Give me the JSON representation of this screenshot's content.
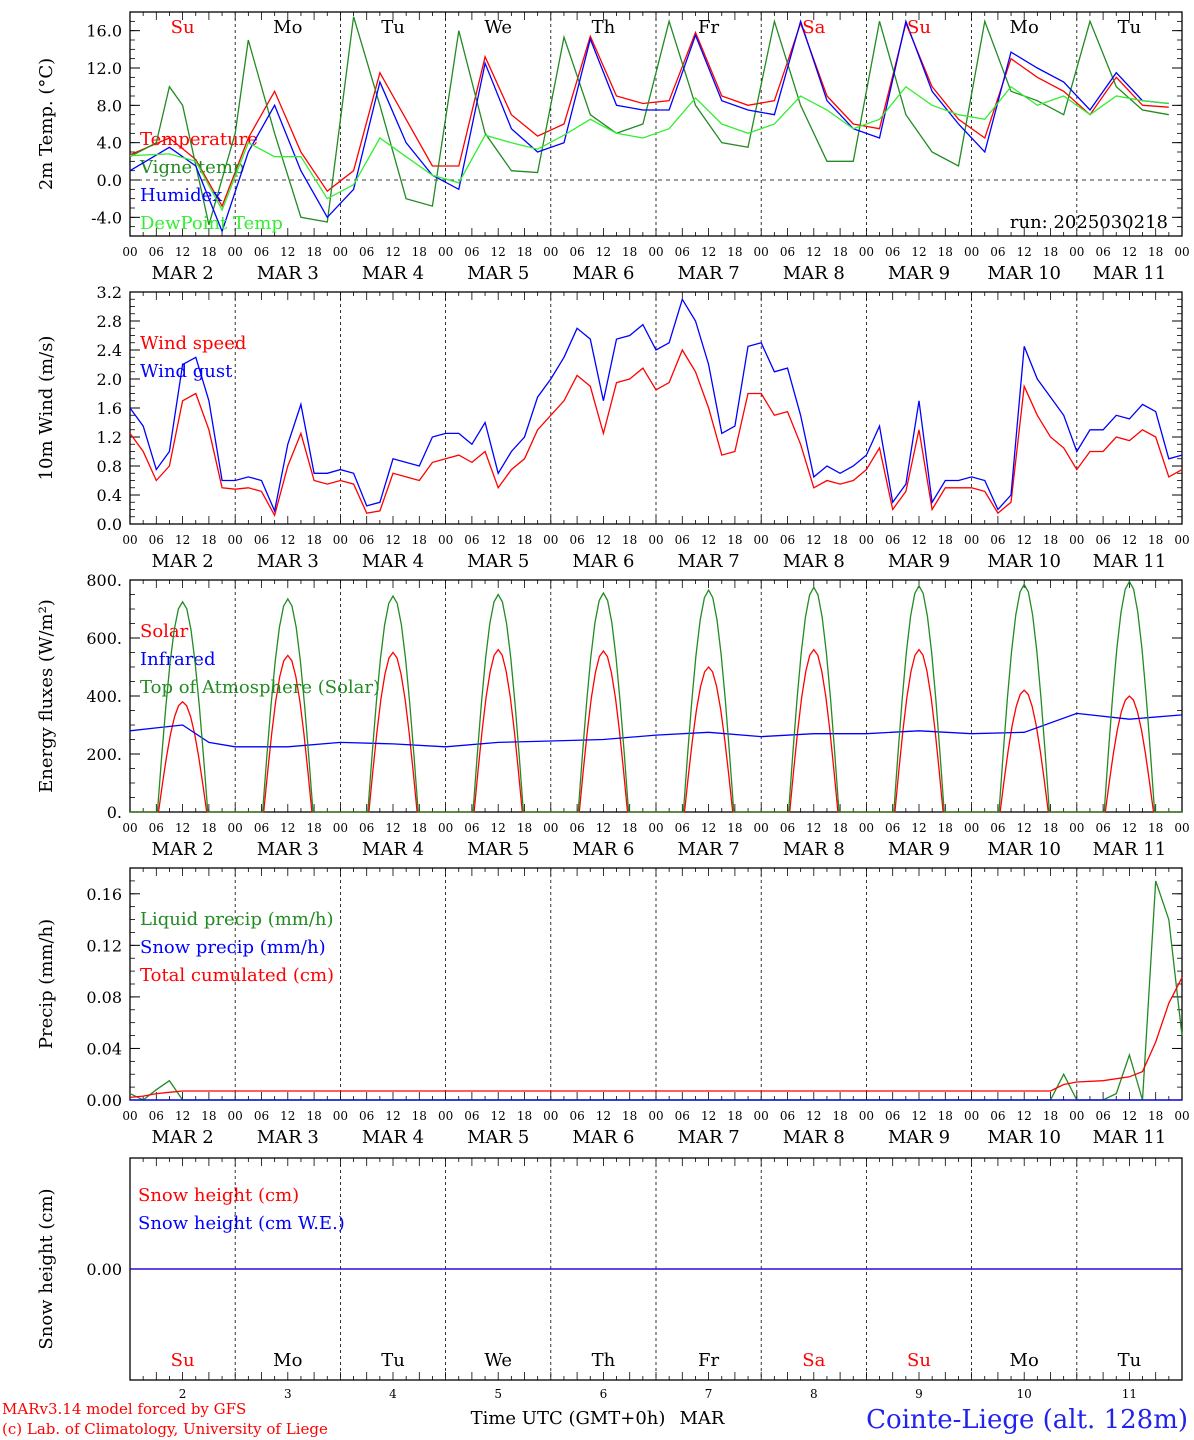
{
  "run_label": "run: 2025030218",
  "days": [
    "Su",
    "Mo",
    "Tu",
    "We",
    "Th",
    "Fr",
    "Sa",
    "Su",
    "Mo",
    "Tu"
  ],
  "day_colors": [
    "#ff0000",
    "#000000",
    "#000000",
    "#000000",
    "#000000",
    "#000000",
    "#ff0000",
    "#ff0000",
    "#000000",
    "#000000"
  ],
  "dates": [
    "MAR 2",
    "MAR 3",
    "MAR 4",
    "MAR 5",
    "MAR 6",
    "MAR 7",
    "MAR 8",
    "MAR 9",
    "MAR 10",
    "MAR 11"
  ],
  "date_numbers": [
    "2",
    "3",
    "4",
    "5",
    "6",
    "7",
    "8",
    "9",
    "10",
    "11"
  ],
  "hour_labels": [
    "00",
    "06",
    "12",
    "18"
  ],
  "hour_end_label": "00",
  "footer": {
    "model": "MARv3.14 model forced by GFS",
    "lab": "(c) Lab. of Climatology, University of Liege",
    "xlabel": "Time UTC (GMT+0h)",
    "month": "MAR",
    "station": "Cointe-Liege (alt. 128m)"
  },
  "colors": {
    "red": "#ff0000",
    "green": "#228b22",
    "blue": "#0000ff",
    "lightgreen": "#33ee33"
  },
  "chart_data": [
    {
      "type": "line",
      "ylabel": "2m Temp. (°C)",
      "ylim": [
        -6.0,
        18.0
      ],
      "yticks": [
        -4.0,
        0.0,
        4.0,
        8.0,
        12.0,
        16.0
      ],
      "ytick_labels": [
        "-4.0",
        "0.0",
        "4.0",
        "8.0",
        "12.0",
        "16.0"
      ],
      "zero_line": true,
      "series": [
        {
          "name": "Temperature",
          "color": "#ff0000",
          "x": [
            0,
            9,
            15,
            21,
            27,
            33,
            39,
            45,
            51,
            57,
            63,
            69,
            75,
            81,
            87,
            93,
            99,
            105,
            111,
            117,
            123,
            129,
            135,
            141,
            147,
            153,
            159,
            165,
            171,
            177,
            183,
            189,
            195,
            201,
            207,
            213,
            219,
            225,
            231,
            237
          ],
          "y": [
            2.7,
            4.5,
            2.2,
            -2.8,
            4.5,
            9.5,
            3.0,
            -1.2,
            1.0,
            11.5,
            6.5,
            1.5,
            1.5,
            13.2,
            7.0,
            4.7,
            6.0,
            15.4,
            9.0,
            8.2,
            8.5,
            15.8,
            9.0,
            8.0,
            8.5,
            16.8,
            9.0,
            6.0,
            5.5,
            16.8,
            10.0,
            6.5,
            4.5,
            13.0,
            11.0,
            9.5,
            7.0,
            11.0,
            8.0,
            7.8
          ]
        },
        {
          "name": "Vigne temp",
          "color": "#228b22",
          "x": [
            0,
            6,
            9,
            12,
            18,
            24,
            27,
            33,
            39,
            45,
            51,
            57,
            63,
            69,
            75,
            81,
            87,
            93,
            99,
            105,
            111,
            117,
            123,
            129,
            135,
            141,
            147,
            153,
            159,
            165,
            171,
            177,
            183,
            189,
            195,
            201,
            207,
            213,
            219,
            225,
            231,
            237
          ],
          "y": [
            2.5,
            4.0,
            10.0,
            8.0,
            -4.8,
            5.0,
            15.0,
            5.0,
            -4.0,
            -4.5,
            17.5,
            8.0,
            -2.0,
            -2.8,
            16.0,
            5.0,
            1.0,
            0.8,
            15.3,
            7.0,
            5.0,
            6.0,
            17.0,
            8.0,
            4.0,
            3.5,
            17.0,
            8.0,
            2.0,
            2.0,
            17.0,
            7.0,
            3.0,
            1.5,
            17.0,
            9.5,
            8.5,
            7.0,
            17.0,
            10.0,
            7.5,
            7.0
          ]
        },
        {
          "name": "Humidex",
          "color": "#0000ff",
          "x": [
            0,
            9,
            15,
            21,
            27,
            33,
            39,
            45,
            51,
            57,
            63,
            69,
            75,
            81,
            87,
            93,
            99,
            105,
            111,
            117,
            123,
            129,
            135,
            141,
            147,
            153,
            159,
            165,
            171,
            177,
            183,
            189,
            195,
            201,
            207,
            213,
            219,
            225,
            231,
            237
          ],
          "y": [
            1.0,
            3.5,
            1.5,
            -5.5,
            3.0,
            8.0,
            1.0,
            -4.0,
            -1.0,
            10.5,
            4.0,
            0.5,
            -1.0,
            12.5,
            5.5,
            3.0,
            4.0,
            15.1,
            8.0,
            7.5,
            7.5,
            15.5,
            8.5,
            7.5,
            7.0,
            17.0,
            8.5,
            5.5,
            4.5,
            17.0,
            9.5,
            6.0,
            3.0,
            13.7,
            12.0,
            10.5,
            7.5,
            11.5,
            8.5,
            8.2
          ]
        },
        {
          "name": "DewPoint Temp",
          "color": "#33ee33",
          "x": [
            0,
            9,
            15,
            21,
            27,
            33,
            39,
            45,
            51,
            57,
            63,
            69,
            75,
            81,
            87,
            93,
            99,
            105,
            111,
            117,
            123,
            129,
            135,
            141,
            147,
            153,
            159,
            165,
            171,
            177,
            183,
            189,
            195,
            201,
            207,
            213,
            219,
            225,
            231,
            237
          ],
          "y": [
            2.6,
            2.8,
            2.0,
            -3.2,
            4.0,
            2.5,
            2.5,
            -2.0,
            -0.5,
            4.5,
            2.5,
            0.5,
            -0.3,
            4.8,
            4.0,
            3.3,
            4.8,
            6.5,
            5.0,
            4.5,
            5.5,
            8.8,
            6.0,
            5.0,
            6.0,
            9.0,
            7.5,
            5.5,
            6.5,
            10.0,
            8.0,
            7.0,
            6.5,
            10.0,
            8.0,
            9.0,
            7.0,
            9.0,
            8.5,
            8.2
          ]
        }
      ]
    },
    {
      "type": "line",
      "ylabel": "10m Wind (m/s)",
      "ylim": [
        0.0,
        3.2
      ],
      "yticks": [
        0.0,
        0.4,
        0.8,
        1.2,
        1.6,
        2.0,
        2.4,
        2.8,
        3.2
      ],
      "ytick_labels": [
        "0.0",
        "0.4",
        "0.8",
        "1.2",
        "1.6",
        "2.0",
        "2.4",
        "2.8",
        "3.2"
      ],
      "series": [
        {
          "name": "Wind speed",
          "color": "#ff0000",
          "x": [
            0,
            3,
            6,
            9,
            12,
            15,
            18,
            21,
            24,
            27,
            30,
            33,
            36,
            39,
            42,
            45,
            48,
            51,
            54,
            57,
            60,
            63,
            66,
            69,
            72,
            75,
            78,
            81,
            84,
            87,
            90,
            93,
            96,
            99,
            102,
            105,
            108,
            111,
            114,
            117,
            120,
            123,
            126,
            129,
            132,
            135,
            138,
            141,
            144,
            147,
            150,
            153,
            156,
            159,
            162,
            165,
            168,
            171,
            174,
            177,
            180,
            183,
            186,
            189,
            192,
            195,
            198,
            201,
            204,
            207,
            210,
            213,
            216,
            219,
            222,
            225,
            228,
            231,
            234,
            237,
            240
          ],
          "y": [
            1.25,
            1.0,
            0.6,
            0.8,
            1.7,
            1.8,
            1.3,
            0.5,
            0.48,
            0.5,
            0.45,
            0.12,
            0.8,
            1.25,
            0.6,
            0.55,
            0.6,
            0.55,
            0.15,
            0.18,
            0.7,
            0.65,
            0.6,
            0.85,
            0.9,
            0.95,
            0.85,
            1.0,
            0.5,
            0.75,
            0.9,
            1.3,
            1.5,
            1.7,
            2.05,
            1.9,
            1.25,
            1.95,
            2.0,
            2.15,
            1.85,
            1.95,
            2.4,
            2.1,
            1.6,
            0.95,
            1.0,
            1.8,
            1.8,
            1.5,
            1.55,
            1.1,
            0.5,
            0.6,
            0.55,
            0.6,
            0.75,
            1.05,
            0.2,
            0.45,
            1.3,
            0.2,
            0.5,
            0.5,
            0.5,
            0.45,
            0.15,
            0.3,
            1.9,
            1.5,
            1.2,
            1.05,
            0.75,
            1.0,
            1.0,
            1.2,
            1.15,
            1.3,
            1.2,
            0.65,
            0.75
          ]
        },
        {
          "name": "Wind gust",
          "color": "#0000ff",
          "x": [
            0,
            3,
            6,
            9,
            12,
            15,
            18,
            21,
            24,
            27,
            30,
            33,
            36,
            39,
            42,
            45,
            48,
            51,
            54,
            57,
            60,
            63,
            66,
            69,
            72,
            75,
            78,
            81,
            84,
            87,
            90,
            93,
            96,
            99,
            102,
            105,
            108,
            111,
            114,
            117,
            120,
            123,
            126,
            129,
            132,
            135,
            138,
            141,
            144,
            147,
            150,
            153,
            156,
            159,
            162,
            165,
            168,
            171,
            174,
            177,
            180,
            183,
            186,
            189,
            192,
            195,
            198,
            201,
            204,
            207,
            210,
            213,
            216,
            219,
            222,
            225,
            228,
            231,
            234,
            237,
            240
          ],
          "y": [
            1.6,
            1.35,
            0.75,
            1.0,
            2.2,
            2.3,
            1.7,
            0.6,
            0.6,
            0.65,
            0.6,
            0.18,
            1.1,
            1.65,
            0.7,
            0.7,
            0.75,
            0.7,
            0.25,
            0.3,
            0.9,
            0.85,
            0.8,
            1.2,
            1.25,
            1.25,
            1.1,
            1.4,
            0.7,
            1.0,
            1.2,
            1.75,
            2.0,
            2.3,
            2.7,
            2.55,
            1.7,
            2.55,
            2.6,
            2.75,
            2.4,
            2.5,
            3.1,
            2.8,
            2.2,
            1.25,
            1.35,
            2.45,
            2.5,
            2.1,
            2.15,
            1.5,
            0.65,
            0.8,
            0.7,
            0.8,
            0.95,
            1.35,
            0.3,
            0.55,
            1.7,
            0.3,
            0.6,
            0.6,
            0.65,
            0.6,
            0.2,
            0.4,
            2.45,
            2.0,
            1.75,
            1.5,
            1.0,
            1.3,
            1.3,
            1.5,
            1.45,
            1.65,
            1.55,
            0.9,
            0.95
          ]
        }
      ]
    },
    {
      "type": "line",
      "ylabel": "Energy fluxes (W/m²)",
      "ylim": [
        0,
        800
      ],
      "yticks": [
        0,
        200,
        400,
        600,
        800
      ],
      "ytick_labels": [
        "0.",
        "200.",
        "400.",
        "600.",
        "800."
      ],
      "series": [
        {
          "name": "Solar",
          "color": "#ff0000",
          "daily_peak_hour": 12,
          "daily_width_hours": 11,
          "daily_peaks": [
            380,
            540,
            550,
            560,
            555,
            500,
            560,
            560,
            420,
            400
          ]
        },
        {
          "name": "Infrared",
          "color": "#0000ff",
          "x": [
            0,
            6,
            12,
            18,
            24,
            36,
            48,
            60,
            72,
            84,
            96,
            108,
            120,
            132,
            144,
            156,
            168,
            180,
            192,
            204,
            216,
            228,
            240
          ],
          "y": [
            280,
            290,
            300,
            240,
            225,
            225,
            240,
            235,
            225,
            240,
            245,
            250,
            265,
            275,
            260,
            270,
            270,
            280,
            270,
            275,
            340,
            320,
            335
          ]
        },
        {
          "name": "Top of Atmosphere (Solar)",
          "color": "#228b22",
          "daily_peak_hour": 12,
          "daily_width_hours": 11.5,
          "daily_peaks": [
            725,
            735,
            745,
            750,
            755,
            765,
            775,
            780,
            785,
            795
          ]
        }
      ]
    },
    {
      "type": "line",
      "ylabel": "Precip (mm/h)",
      "ylim": [
        0.0,
        0.18
      ],
      "yticks": [
        0.0,
        0.04,
        0.08,
        0.12,
        0.16
      ],
      "ytick_labels": [
        "0.00",
        "0.04",
        "0.08",
        "0.12",
        "0.16"
      ],
      "series": [
        {
          "name": "Liquid precip (mm/h)",
          "color": "#228b22",
          "x": [
            0,
            3,
            6,
            9,
            12,
            15,
            18,
            24,
            210,
            213,
            216,
            219,
            222,
            225,
            228,
            231,
            234,
            237,
            240
          ],
          "y": [
            0.005,
            0.0,
            0.008,
            0.015,
            0.0,
            0.0,
            0.0,
            0.0,
            0.0,
            0.02,
            0.0,
            0.0,
            0.0,
            0.005,
            0.035,
            0.0,
            0.17,
            0.14,
            0.05
          ]
        },
        {
          "name": "Snow precip (mm/h)",
          "color": "#0000ff",
          "x": [
            0,
            240
          ],
          "y": [
            0.0,
            0.0
          ]
        },
        {
          "name": "Total cumulated (cm)",
          "color": "#ff0000",
          "x": [
            0,
            3,
            6,
            9,
            12,
            210,
            213,
            216,
            222,
            228,
            231,
            234,
            237,
            240
          ],
          "y": [
            0.002,
            0.003,
            0.005,
            0.006,
            0.007,
            0.007,
            0.012,
            0.014,
            0.015,
            0.018,
            0.022,
            0.045,
            0.075,
            0.095
          ]
        }
      ]
    },
    {
      "type": "line",
      "ylabel": "Snow height (cm)",
      "ylim": [
        -1.0,
        1.0
      ],
      "yticks": [
        0.0
      ],
      "ytick_labels": [
        "0.00"
      ],
      "series": [
        {
          "name": "Snow height (cm)",
          "color": "#ff0000",
          "x": [
            0,
            240
          ],
          "y": [
            0.0,
            0.0
          ]
        },
        {
          "name": "Snow height (cm W.E.)",
          "color": "#0000ff",
          "x": [
            0,
            240
          ],
          "y": [
            0.0,
            0.0
          ]
        }
      ]
    }
  ]
}
